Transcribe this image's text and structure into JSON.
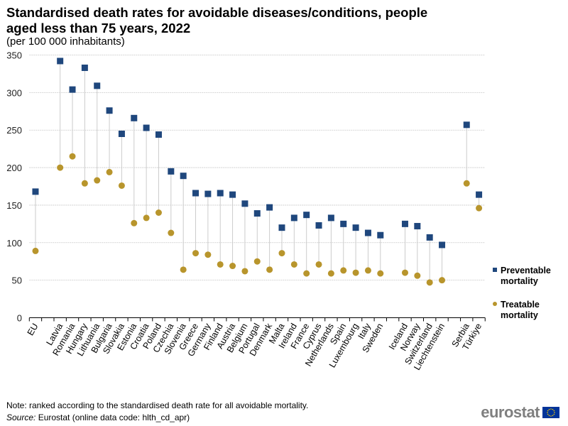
{
  "title": "Standardised death rates for avoidable diseases/conditions, people aged less than 75 years, 2022",
  "subtitle": "(per 100 000 inhabitants)",
  "note": "Note: ranked according to the standardised death rate for all avoidable mortality.",
  "source_label": "Source:",
  "source_text": " Eurostat (online data code: hlth_cd_apr)",
  "logo": "eurostat",
  "colors": {
    "preventable": "#1f477d",
    "treatable": "#b8952c",
    "connector": "#cccccc",
    "grid": "#c8c8c8"
  },
  "chart_data": {
    "type": "scatter",
    "title": "Standardised death rates for avoidable diseases/conditions, people aged less than 75 years, 2022",
    "ylabel": "",
    "xlabel": "",
    "ylim": [
      0,
      350
    ],
    "yticks": [
      0,
      50,
      100,
      150,
      200,
      250,
      300,
      350
    ],
    "grid": true,
    "legend_position": "right",
    "categories": [
      "EU",
      "Latvia",
      "Romania",
      "Hungary",
      "Lithuania",
      "Bulgaria",
      "Slovakia",
      "Estonia",
      "Croatia",
      "Poland",
      "Czechia",
      "Slovenia",
      "Greece",
      "Germany",
      "Finland",
      "Austria",
      "Belgium",
      "Portugal",
      "Denmark",
      "Malta",
      "Ireland",
      "France",
      "Cyprus",
      "Netherlands",
      "Spain",
      "Luxembourg",
      "Italy",
      "Sweden",
      "Iceland",
      "Norway",
      "Switzerland",
      "Liechtenstein",
      "Serbia",
      "Türkiye"
    ],
    "series": [
      {
        "name": "Preventable mortality",
        "marker": "square",
        "values": [
          168,
          342,
          304,
          333,
          309,
          276,
          245,
          266,
          253,
          244,
          195,
          189,
          166,
          165,
          166,
          164,
          152,
          139,
          147,
          120,
          133,
          137,
          123,
          133,
          125,
          120,
          113,
          110,
          125,
          122,
          107,
          97,
          257,
          164
        ]
      },
      {
        "name": "Treatable mortality",
        "marker": "circle",
        "values": [
          89,
          200,
          215,
          179,
          183,
          194,
          176,
          126,
          133,
          140,
          113,
          64,
          86,
          84,
          71,
          69,
          62,
          75,
          64,
          86,
          71,
          59,
          71,
          59,
          63,
          60,
          63,
          59,
          60,
          56,
          47,
          50,
          179,
          146
        ]
      }
    ]
  }
}
